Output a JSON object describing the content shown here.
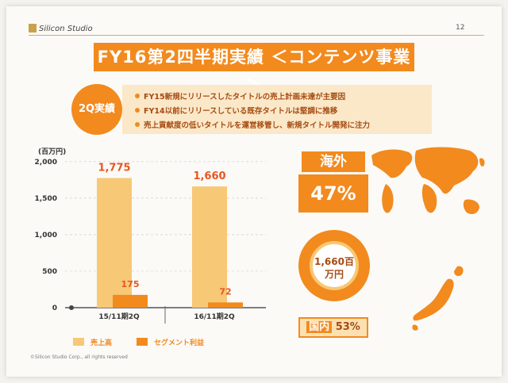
{
  "header": {
    "logo": "Silicon Studio",
    "page_number": "12"
  },
  "title": "FY16第2四半期実績 ＜コンテンツ事業＞",
  "summary": {
    "badge": "2Q実績",
    "bullets": [
      "FY15新規にリリースしたタイトルの売上計画未達が主要因",
      "FY14以前にリリースしている既存タイトルは堅調に推移",
      "売上貢献度の低いタイトルを運営移管し、新規タイトル開発に注力"
    ]
  },
  "chart_data": {
    "type": "bar",
    "unit": "(百万円)",
    "categories": [
      "15/11期2Q",
      "16/11期2Q"
    ],
    "series": [
      {
        "name": "売上高",
        "values": [
          1775,
          1660
        ],
        "labels": [
          "1,775",
          "1,660"
        ],
        "color": "#f7c875"
      },
      {
        "name": "セグメント利益",
        "values": [
          175,
          72
        ],
        "labels": [
          "175",
          "72"
        ],
        "color": "#f28a1e"
      }
    ],
    "yticks": [
      "0",
      "500",
      "1,000",
      "1,500",
      "2,000"
    ],
    "ytick_values": [
      0,
      500,
      1000,
      1500,
      2000
    ],
    "ylim": [
      0,
      2150
    ]
  },
  "legend": {
    "sales": "売上高",
    "profit": "セグメント利益"
  },
  "breakdown": {
    "overseas_label": "海外",
    "overseas_pct": "47%",
    "total": "1,660百万円",
    "total_line1": "1,660百",
    "total_line2": "万円",
    "domestic_label": "国内",
    "domestic_pct": "53%"
  },
  "colors": {
    "accent": "#f28a1e",
    "light": "#f7c875",
    "pale": "#fbe8c8",
    "text_dark": "#a64b12"
  },
  "footer": {
    "copyright": "©Silicon Studio Corp., all rights reserved"
  }
}
